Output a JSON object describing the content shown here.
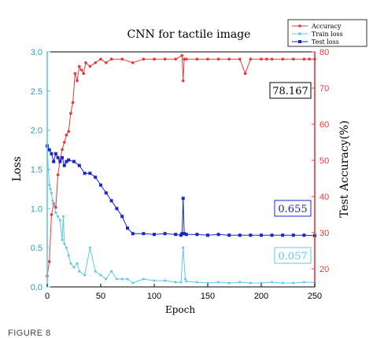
{
  "figure_label": "FIGURE 8",
  "chart_data": {
    "type": "line",
    "title": "CNN for tactile image",
    "xlabel": "Epoch",
    "ylabel_left": "Loss",
    "ylabel_right": "Test Accuracy(%)",
    "xlim": [
      0,
      250
    ],
    "ylim_left": [
      0,
      3.0
    ],
    "ylim_right": [
      15,
      80
    ],
    "x_ticks": [
      "0",
      "50",
      "100",
      "150",
      "200",
      "250"
    ],
    "y_ticks_left": [
      "0.0",
      "0.5",
      "1.0",
      "1.5",
      "2.0",
      "2.5",
      "3.0"
    ],
    "y_ticks_right": [
      "20",
      "30",
      "40",
      "50",
      "60",
      "70",
      "80"
    ],
    "colors": {
      "accuracy": "#e8383d",
      "train_loss": "#5fc8e8",
      "test_loss": "#1a25c8"
    },
    "legend": [
      "Accuracy",
      "Train loss",
      "Test loss"
    ],
    "legend_position": "top-right",
    "annotations": [
      {
        "text": "78.167",
        "series": "accuracy",
        "color": "#000000"
      },
      {
        "text": "0.655",
        "series": "test_loss",
        "color": "#1a25c8"
      },
      {
        "text": "0.057",
        "series": "train_loss",
        "color": "#5fc8e8"
      }
    ],
    "series": [
      {
        "name": "Accuracy",
        "axis": "right",
        "x": [
          0,
          2,
          4,
          6,
          8,
          10,
          12,
          14,
          16,
          18,
          20,
          22,
          24,
          26,
          28,
          30,
          32,
          34,
          36,
          40,
          45,
          50,
          55,
          60,
          70,
          80,
          90,
          100,
          110,
          120,
          126,
          127,
          128,
          130,
          140,
          150,
          160,
          170,
          180,
          185,
          190,
          200,
          205,
          210,
          220,
          230,
          240,
          245,
          250
        ],
        "y": [
          18,
          22,
          35,
          38,
          37,
          46,
          50,
          53,
          55,
          57,
          58,
          63,
          66,
          74,
          72,
          76,
          75,
          74,
          77,
          76,
          77,
          78,
          77,
          78,
          78,
          77,
          78,
          78,
          78,
          78,
          79,
          72,
          78,
          78,
          78,
          78,
          78,
          78,
          78,
          74,
          78,
          78,
          78,
          78,
          78,
          78,
          78,
          78,
          78
        ]
      },
      {
        "name": "Train loss",
        "axis": "left",
        "x": [
          0,
          1,
          2,
          3,
          4,
          5,
          6,
          8,
          10,
          12,
          14,
          15,
          16,
          18,
          20,
          22,
          25,
          28,
          30,
          35,
          40,
          45,
          50,
          55,
          60,
          65,
          70,
          75,
          80,
          90,
          100,
          110,
          120,
          125,
          127,
          129,
          130,
          140,
          150,
          160,
          170,
          180,
          190,
          200,
          210,
          220,
          230,
          240,
          250
        ],
        "y": [
          1.8,
          1.5,
          1.3,
          1.25,
          1.2,
          1.1,
          1.05,
          0.95,
          0.9,
          0.85,
          0.6,
          0.9,
          0.55,
          0.5,
          0.4,
          0.3,
          0.25,
          0.3,
          0.2,
          0.15,
          0.5,
          0.2,
          0.15,
          0.1,
          0.2,
          0.1,
          0.1,
          0.1,
          0.05,
          0.1,
          0.08,
          0.08,
          0.06,
          0.06,
          0.5,
          0.1,
          0.07,
          0.06,
          0.05,
          0.06,
          0.05,
          0.06,
          0.05,
          0.05,
          0.06,
          0.05,
          0.05,
          0.06,
          0.057
        ]
      },
      {
        "name": "Test loss",
        "axis": "left",
        "x": [
          0,
          2,
          4,
          6,
          8,
          10,
          12,
          14,
          16,
          18,
          20,
          25,
          30,
          35,
          40,
          45,
          50,
          55,
          60,
          65,
          70,
          75,
          80,
          90,
          100,
          110,
          120,
          125,
          126,
          127,
          128,
          130,
          140,
          150,
          160,
          170,
          180,
          190,
          200,
          210,
          220,
          230,
          240,
          250
        ],
        "y": [
          1.8,
          1.75,
          1.7,
          1.6,
          1.7,
          1.65,
          1.6,
          1.65,
          1.55,
          1.6,
          1.62,
          1.6,
          1.55,
          1.45,
          1.45,
          1.4,
          1.3,
          1.2,
          1.1,
          1.0,
          0.9,
          0.75,
          0.68,
          0.68,
          0.67,
          0.68,
          0.67,
          0.66,
          0.68,
          1.13,
          0.68,
          0.67,
          0.67,
          0.66,
          0.67,
          0.66,
          0.66,
          0.66,
          0.66,
          0.66,
          0.66,
          0.66,
          0.66,
          0.655
        ]
      }
    ]
  }
}
